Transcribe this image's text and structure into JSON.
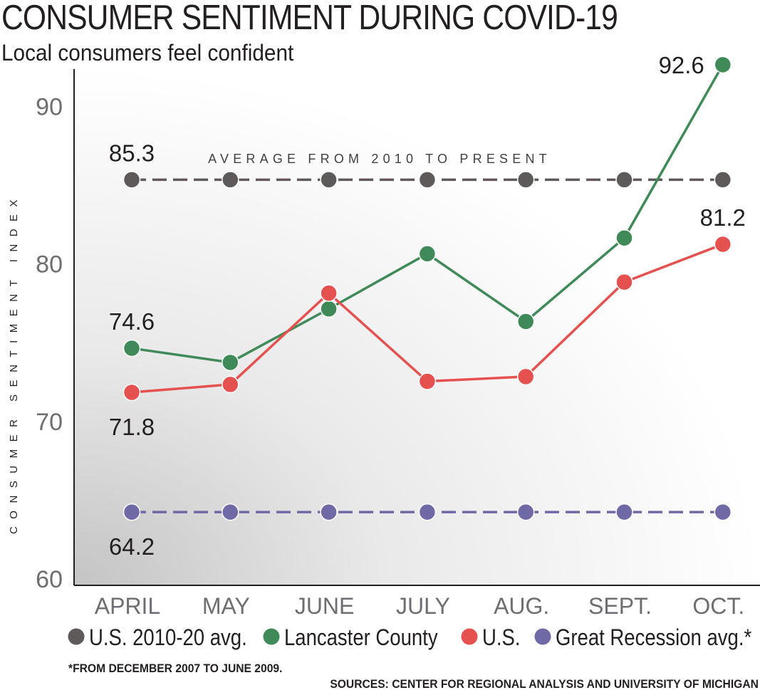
{
  "chart_data": {
    "type": "line",
    "title": "CONSUMER SENTIMENT DURING COVID-19",
    "subtitle": "Local consumers feel confident",
    "ylabel": "CONSUMER SENTIMENT INDEX",
    "xlabel": "",
    "ylim": [
      60,
      93
    ],
    "yticks": [
      60,
      70,
      80,
      90
    ],
    "yticks_label": [
      "60",
      "70",
      "80",
      "90"
    ],
    "categories": [
      "APRIL",
      "MAY",
      "JUNE",
      "JULY",
      "AUG.",
      "SEPT.",
      "OCT."
    ],
    "series": [
      {
        "name": "U.S. 2010-20 avg.",
        "color": "#5d5a59",
        "style": "dashed",
        "values": [
          85.3,
          85.3,
          85.3,
          85.3,
          85.3,
          85.3,
          85.3
        ]
      },
      {
        "name": "Lancaster County",
        "color": "#3f8a58",
        "style": "solid",
        "values": [
          74.6,
          73.7,
          77.1,
          80.6,
          76.3,
          81.6,
          92.6
        ]
      },
      {
        "name": "U.S.",
        "color": "#e4514f",
        "style": "solid",
        "values": [
          71.8,
          72.3,
          78.1,
          72.5,
          72.8,
          78.8,
          81.2
        ]
      },
      {
        "name": "Great Recession avg.*",
        "color": "#6f6aa6",
        "style": "dashed",
        "values": [
          64.2,
          64.2,
          64.2,
          64.2,
          64.2,
          64.2,
          64.2
        ]
      }
    ],
    "data_labels": [
      {
        "text": "85.3",
        "series": 0,
        "index": 0,
        "place": "above"
      },
      {
        "text": "74.6",
        "series": 1,
        "index": 0,
        "place": "above"
      },
      {
        "text": "71.8",
        "series": 2,
        "index": 0,
        "place": "below"
      },
      {
        "text": "64.2",
        "series": 3,
        "index": 0,
        "place": "below"
      },
      {
        "text": "92.6",
        "series": 1,
        "index": 6,
        "place": "left"
      },
      {
        "text": "81.2",
        "series": 2,
        "index": 6,
        "place": "above"
      }
    ],
    "annotation": "AVERAGE FROM 2010 TO PRESENT",
    "legend_position": "bottom",
    "footnote": "*FROM DECEMBER 2007 TO JUNE 2009.",
    "sources": "SOURCES: CENTER FOR REGIONAL ANALYSIS AND UNIVERSITY OF MICHIGAN"
  }
}
